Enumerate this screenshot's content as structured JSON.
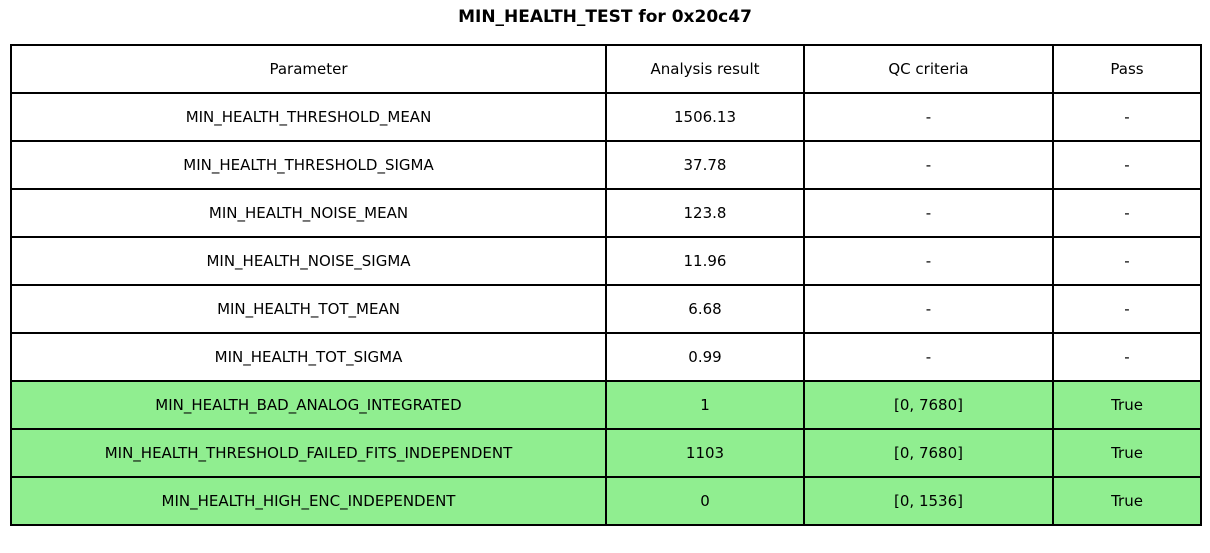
{
  "chart_data": {
    "type": "table",
    "title": "MIN_HEALTH_TEST for 0x20c47",
    "columns": [
      "Parameter",
      "Analysis result",
      "QC criteria",
      "Pass"
    ],
    "rows": [
      {
        "cells": [
          "MIN_HEALTH_THRESHOLD_MEAN",
          "1506.13",
          "-",
          "-"
        ],
        "highlight": false
      },
      {
        "cells": [
          "MIN_HEALTH_THRESHOLD_SIGMA",
          "37.78",
          "-",
          "-"
        ],
        "highlight": false
      },
      {
        "cells": [
          "MIN_HEALTH_NOISE_MEAN",
          "123.8",
          "-",
          "-"
        ],
        "highlight": false
      },
      {
        "cells": [
          "MIN_HEALTH_NOISE_SIGMA",
          "11.96",
          "-",
          "-"
        ],
        "highlight": false
      },
      {
        "cells": [
          "MIN_HEALTH_TOT_MEAN",
          "6.68",
          "-",
          "-"
        ],
        "highlight": false
      },
      {
        "cells": [
          "MIN_HEALTH_TOT_SIGMA",
          "0.99",
          "-",
          "-"
        ],
        "highlight": false
      },
      {
        "cells": [
          "MIN_HEALTH_BAD_ANALOG_INTEGRATED",
          "1",
          "[0, 7680]",
          "True"
        ],
        "highlight": true
      },
      {
        "cells": [
          "MIN_HEALTH_THRESHOLD_FAILED_FITS_INDEPENDENT",
          "1103",
          "[0, 7680]",
          "True"
        ],
        "highlight": true
      },
      {
        "cells": [
          "MIN_HEALTH_HIGH_ENC_INDEPENDENT",
          "0",
          "[0, 1536]",
          "True"
        ],
        "highlight": true
      }
    ],
    "layout": {
      "legend": "none",
      "grid": "full-cell-borders",
      "title_position": "top-center"
    }
  },
  "colors": {
    "pass_row_bg": "#90EE90",
    "border": "#000000",
    "background": "#FFFFFF",
    "text": "#000000"
  }
}
